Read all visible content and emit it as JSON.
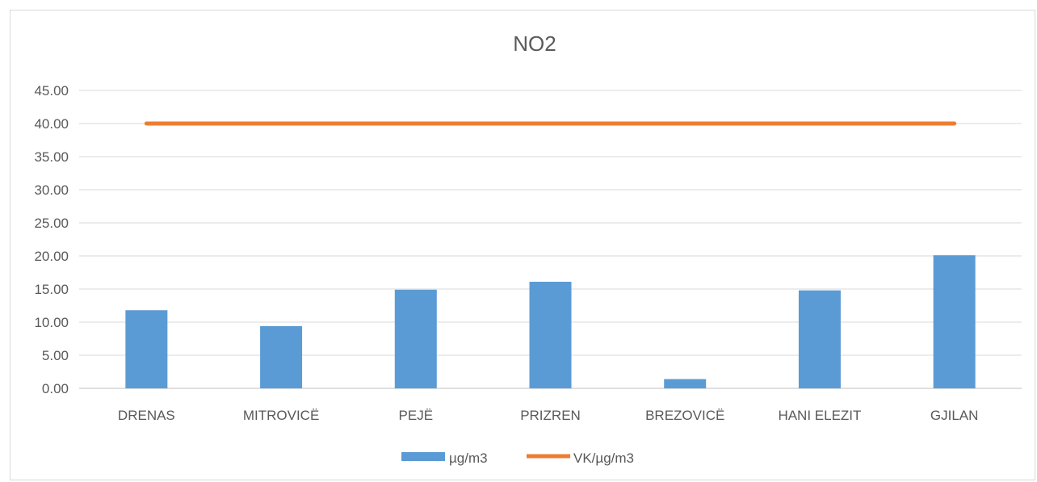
{
  "chart_data": {
    "type": "bar",
    "title": "NO2",
    "categories": [
      "DRENAS",
      "MITROVICË",
      "PEJË",
      "PRIZREN",
      "BREZOVICË",
      "HANI ELEZIT",
      "GJILAN"
    ],
    "series": [
      {
        "name": "µg/m3",
        "type": "bar",
        "color": "#5b9bd5",
        "values": [
          11.8,
          9.4,
          14.9,
          16.1,
          1.4,
          14.8,
          20.1
        ]
      },
      {
        "name": "VK/µg/m3",
        "type": "line",
        "color": "#ed7d31",
        "values": [
          40,
          40,
          40,
          40,
          40,
          40,
          40
        ]
      }
    ],
    "ylim": [
      0,
      45
    ],
    "yticks": [
      "0.00",
      "5.00",
      "10.00",
      "15.00",
      "20.00",
      "25.00",
      "30.00",
      "35.00",
      "40.00",
      "45.00"
    ],
    "grid": true,
    "legend": "bottom"
  }
}
